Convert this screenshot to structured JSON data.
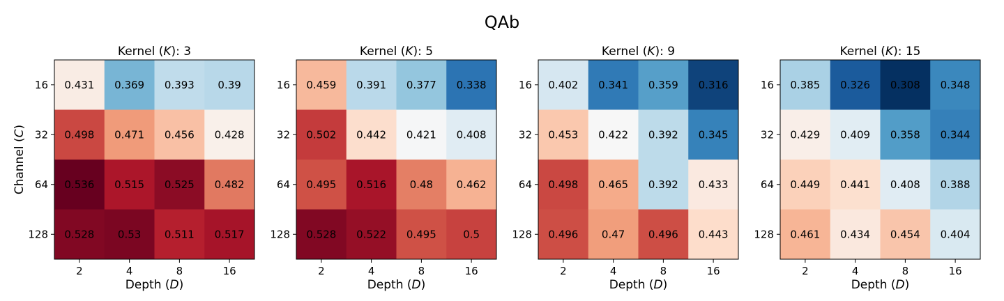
{
  "figure_title": "QAb",
  "chart_data": [
    {
      "type": "heatmap",
      "title_prefix": "Kernel (",
      "title_var": "K",
      "title_suffix": "): 3",
      "xlabel_prefix": "Depth (",
      "xlabel_var": "D",
      "xlabel_suffix": ")",
      "ylabel_prefix": "Channel (",
      "ylabel_var": "C",
      "ylabel_suffix": ")",
      "x_categories": [
        "2",
        "4",
        "8",
        "16"
      ],
      "y_categories": [
        "16",
        "32",
        "64",
        "128"
      ],
      "values": [
        [
          0.431,
          0.369,
          0.393,
          0.39
        ],
        [
          0.498,
          0.471,
          0.456,
          0.428
        ],
        [
          0.536,
          0.515,
          0.525,
          0.482
        ],
        [
          0.528,
          0.53,
          0.511,
          0.517
        ]
      ],
      "labels": [
        [
          "0.431",
          "0.369",
          "0.393",
          "0.39"
        ],
        [
          "0.498",
          "0.471",
          "0.456",
          "0.428"
        ],
        [
          "0.536",
          "0.515",
          "0.525",
          "0.482"
        ],
        [
          "0.528",
          "0.53",
          "0.511",
          "0.517"
        ]
      ],
      "colormap": "RdBu_r"
    },
    {
      "type": "heatmap",
      "title_prefix": "Kernel (",
      "title_var": "K",
      "title_suffix": "): 5",
      "xlabel_prefix": "Depth (",
      "xlabel_var": "D",
      "xlabel_suffix": ")",
      "x_categories": [
        "2",
        "4",
        "8",
        "16"
      ],
      "y_categories": [
        "16",
        "32",
        "64",
        "128"
      ],
      "values": [
        [
          0.459,
          0.391,
          0.377,
          0.338
        ],
        [
          0.502,
          0.442,
          0.421,
          0.408
        ],
        [
          0.495,
          0.516,
          0.48,
          0.462
        ],
        [
          0.528,
          0.522,
          0.495,
          0.5
        ]
      ],
      "labels": [
        [
          "0.459",
          "0.391",
          "0.377",
          "0.338"
        ],
        [
          "0.502",
          "0.442",
          "0.421",
          "0.408"
        ],
        [
          "0.495",
          "0.516",
          "0.48",
          "0.462"
        ],
        [
          "0.528",
          "0.522",
          "0.495",
          "0.5"
        ]
      ],
      "colormap": "RdBu_r"
    },
    {
      "type": "heatmap",
      "title_prefix": "Kernel (",
      "title_var": "K",
      "title_suffix": "): 9",
      "xlabel_prefix": "Depth (",
      "xlabel_var": "D",
      "xlabel_suffix": ")",
      "x_categories": [
        "2",
        "4",
        "8",
        "16"
      ],
      "y_categories": [
        "16",
        "32",
        "64",
        "128"
      ],
      "values": [
        [
          0.402,
          0.341,
          0.359,
          0.316
        ],
        [
          0.453,
          0.422,
          0.392,
          0.345
        ],
        [
          0.498,
          0.465,
          0.392,
          0.433
        ],
        [
          0.496,
          0.47,
          0.496,
          0.443
        ]
      ],
      "labels": [
        [
          "0.402",
          "0.341",
          "0.359",
          "0.316"
        ],
        [
          "0.453",
          "0.422",
          "0.392",
          "0.345"
        ],
        [
          "0.498",
          "0.465",
          "0.392",
          "0.433"
        ],
        [
          "0.496",
          "0.47",
          "0.496",
          "0.443"
        ]
      ],
      "colormap": "RdBu_r"
    },
    {
      "type": "heatmap",
      "title_prefix": "Kernel (",
      "title_var": "K",
      "title_suffix": "): 15",
      "xlabel_prefix": "Depth (",
      "xlabel_var": "D",
      "xlabel_suffix": ")",
      "x_categories": [
        "2",
        "4",
        "8",
        "16"
      ],
      "y_categories": [
        "16",
        "32",
        "64",
        "128"
      ],
      "values": [
        [
          0.385,
          0.326,
          0.308,
          0.348
        ],
        [
          0.429,
          0.409,
          0.358,
          0.344
        ],
        [
          0.449,
          0.441,
          0.408,
          0.388
        ],
        [
          0.461,
          0.434,
          0.454,
          0.404
        ]
      ],
      "labels": [
        [
          "0.385",
          "0.326",
          "0.308",
          "0.348"
        ],
        [
          "0.429",
          "0.409",
          "0.358",
          "0.344"
        ],
        [
          "0.449",
          "0.441",
          "0.408",
          "0.388"
        ],
        [
          "0.461",
          "0.434",
          "0.454",
          "0.404"
        ]
      ],
      "colormap": "RdBu_r"
    }
  ],
  "color_range": [
    0.308,
    0.536
  ],
  "colors": {
    "rdbu_stops": [
      "#053061",
      "#2166ac",
      "#4393c3",
      "#92c5de",
      "#d1e5f0",
      "#f7f7f7",
      "#fddbc7",
      "#f4a582",
      "#d6604d",
      "#b2182b",
      "#67001f"
    ]
  }
}
